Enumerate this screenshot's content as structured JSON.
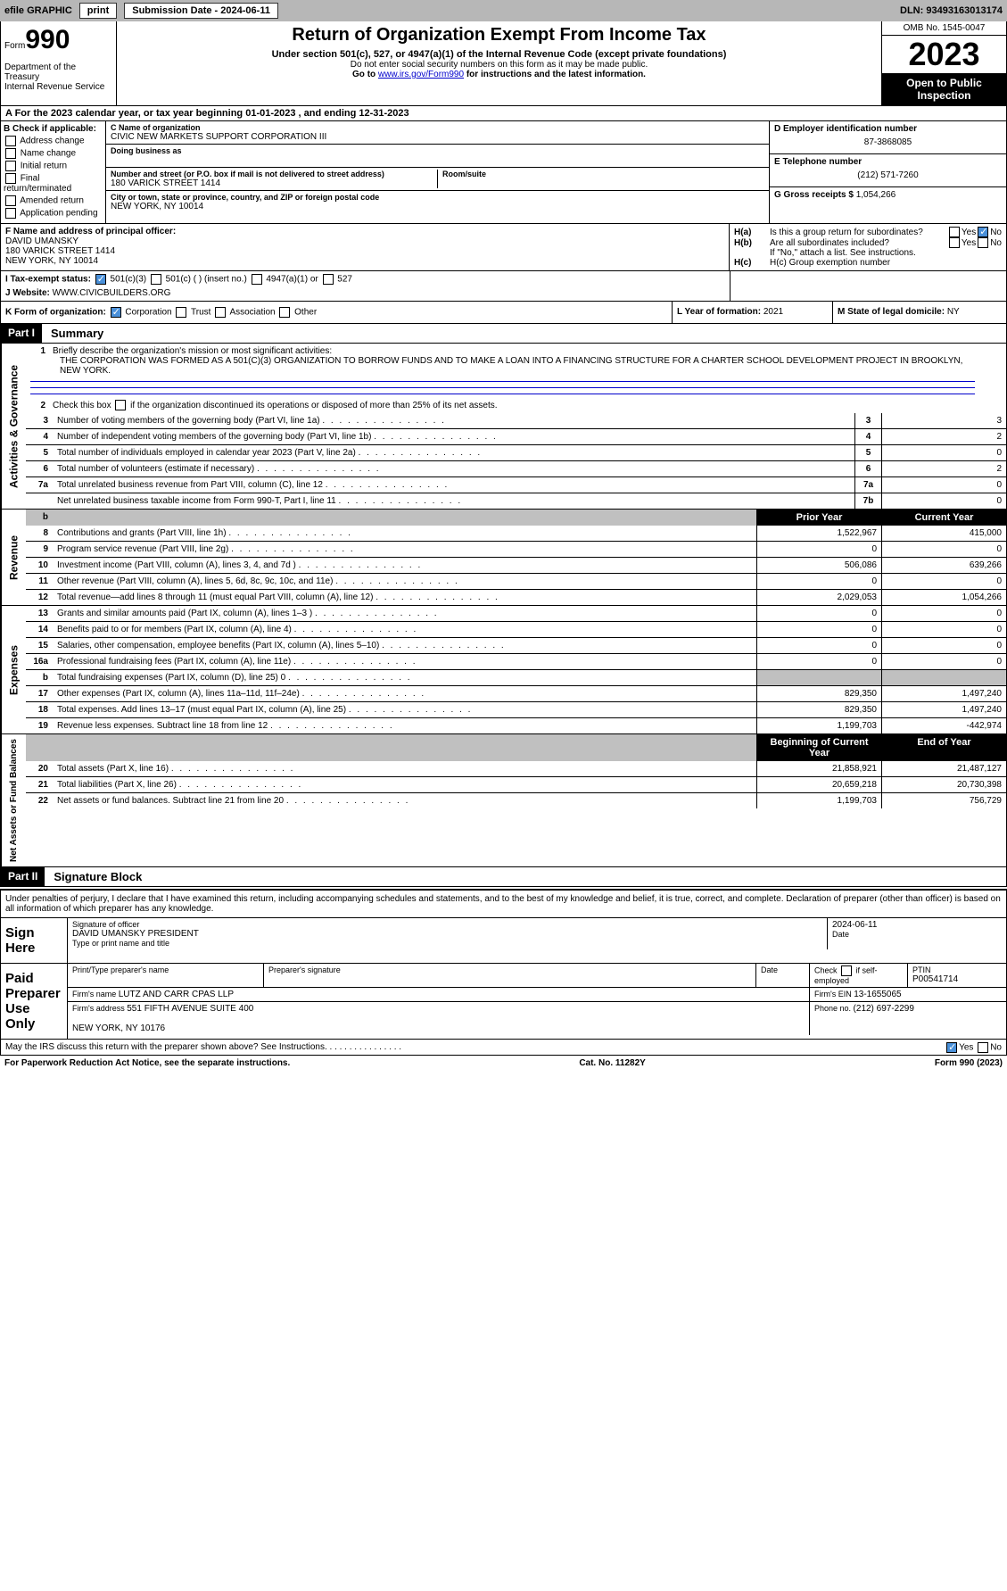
{
  "topbar": {
    "efile": "efile GRAPHIC",
    "print": "print",
    "submission_label": "Submission Date - ",
    "submission_date": "2024-06-11",
    "dln_label": "DLN: ",
    "dln": "93493163013174"
  },
  "header": {
    "form_prefix": "Form",
    "form_num": "990",
    "dept": "Department of the Treasury\nInternal Revenue Service",
    "title": "Return of Organization Exempt From Income Tax",
    "subtitle": "Under section 501(c), 527, or 4947(a)(1) of the Internal Revenue Code (except private foundations)",
    "note1": "Do not enter social security numbers on this form as it may be made public.",
    "note2_prefix": "Go to ",
    "note2_link": "www.irs.gov/Form990",
    "note2_suffix": " for instructions and the latest information.",
    "omb": "OMB No. 1545-0047",
    "year": "2023",
    "open": "Open to Public Inspection"
  },
  "period": {
    "text_a": "A  For the 2023 calendar year, or tax year beginning ",
    "begin": "01-01-2023",
    "text_b": " , and ending ",
    "end": "12-31-2023"
  },
  "colB": {
    "hdr": "B Check if applicable:",
    "opts": [
      "Address change",
      "Name change",
      "Initial return",
      "Final return/terminated",
      "Amended return",
      "Application pending"
    ]
  },
  "colC": {
    "name_label": "C Name of organization",
    "name": "CIVIC NEW MARKETS SUPPORT CORPORATION III",
    "dba_label": "Doing business as",
    "addr_label": "Number and street (or P.O. box if mail is not delivered to street address)",
    "room_label": "Room/suite",
    "addr": "180 VARICK STREET 1414",
    "city_label": "City or town, state or province, country, and ZIP or foreign postal code",
    "city": "NEW YORK, NY  10014"
  },
  "colDE": {
    "d_label": "D Employer identification number",
    "d_val": "87-3868085",
    "e_label": "E Telephone number",
    "e_val": "(212) 571-7260",
    "g_label": "G Gross receipts $ ",
    "g_val": "1,054,266"
  },
  "sectionF": {
    "f_label": "F  Name and address of principal officer:",
    "f_name": "DAVID UMANSKY",
    "f_addr": "180 VARICK STREET 1414\nNEW YORK, NY  10014",
    "ha_label": "H(a)  Is this a group return for subordinates?",
    "hb_label": "H(b)  Are all subordinates included?",
    "hb_note": "If \"No,\" attach a list. See instructions.",
    "hc_label": "H(c)  Group exemption number "
  },
  "sectionI": {
    "label": "I   Tax-exempt status:",
    "opt1": "501(c)(3)",
    "opt2": "501(c) (  ) (insert no.)",
    "opt3": "4947(a)(1) or",
    "opt4": "527"
  },
  "sectionJ": {
    "label": "J   Website: ",
    "val": "WWW.CIVICBUILDERS.ORG"
  },
  "sectionK": {
    "k_label": "K Form of organization:",
    "k_opts": [
      "Corporation",
      "Trust",
      "Association",
      "Other"
    ],
    "l_label": "L Year of formation: ",
    "l_val": "2021",
    "m_label": "M State of legal domicile: ",
    "m_val": "NY"
  },
  "part1": {
    "hdr": "Part I",
    "title": "Summary",
    "vert_labels": [
      "Activities & Governance",
      "Revenue",
      "Expenses",
      "Net Assets or Fund Balances"
    ],
    "l1_text": "Briefly describe the organization's mission or most significant activities:",
    "l1_val": "THE CORPORATION WAS FORMED AS A 501(C)(3) ORGANIZATION TO BORROW FUNDS AND TO MAKE A LOAN INTO A FINANCING STRUCTURE FOR A CHARTER SCHOOL DEVELOPMENT PROJECT IN BROOKLYN, NEW YORK.",
    "l2_text": "Check this box       if the organization discontinued its operations or disposed of more than 25% of its net assets.",
    "lines_gov": [
      {
        "num": "3",
        "text": "Number of voting members of the governing body (Part VI, line 1a)",
        "box": "3",
        "val": "3"
      },
      {
        "num": "4",
        "text": "Number of independent voting members of the governing body (Part VI, line 1b)",
        "box": "4",
        "val": "2"
      },
      {
        "num": "5",
        "text": "Total number of individuals employed in calendar year 2023 (Part V, line 2a)",
        "box": "5",
        "val": "0"
      },
      {
        "num": "6",
        "text": "Total number of volunteers (estimate if necessary)",
        "box": "6",
        "val": "2"
      },
      {
        "num": "7a",
        "text": "Total unrelated business revenue from Part VIII, column (C), line 12",
        "box": "7a",
        "val": "0"
      },
      {
        "num": "",
        "text": "Net unrelated business taxable income from Form 990-T, Part I, line 11",
        "box": "7b",
        "val": "0"
      }
    ],
    "col_prior": "Prior Year",
    "col_current": "Current Year",
    "lines_rev": [
      {
        "num": "8",
        "text": "Contributions and grants (Part VIII, line 1h)",
        "prior": "1,522,967",
        "curr": "415,000"
      },
      {
        "num": "9",
        "text": "Program service revenue (Part VIII, line 2g)",
        "prior": "0",
        "curr": "0"
      },
      {
        "num": "10",
        "text": "Investment income (Part VIII, column (A), lines 3, 4, and 7d )",
        "prior": "506,086",
        "curr": "639,266"
      },
      {
        "num": "11",
        "text": "Other revenue (Part VIII, column (A), lines 5, 6d, 8c, 9c, 10c, and 11e)",
        "prior": "0",
        "curr": "0"
      },
      {
        "num": "12",
        "text": "Total revenue—add lines 8 through 11 (must equal Part VIII, column (A), line 12)",
        "prior": "2,029,053",
        "curr": "1,054,266"
      }
    ],
    "lines_exp": [
      {
        "num": "13",
        "text": "Grants and similar amounts paid (Part IX, column (A), lines 1–3 )",
        "prior": "0",
        "curr": "0"
      },
      {
        "num": "14",
        "text": "Benefits paid to or for members (Part IX, column (A), line 4)",
        "prior": "0",
        "curr": "0"
      },
      {
        "num": "15",
        "text": "Salaries, other compensation, employee benefits (Part IX, column (A), lines 5–10)",
        "prior": "0",
        "curr": "0"
      },
      {
        "num": "16a",
        "text": "Professional fundraising fees (Part IX, column (A), line 11e)",
        "prior": "0",
        "curr": "0"
      },
      {
        "num": "b",
        "text": "Total fundraising expenses (Part IX, column (D), line 25) 0",
        "prior": "",
        "curr": "",
        "grey": true
      },
      {
        "num": "17",
        "text": "Other expenses (Part IX, column (A), lines 11a–11d, 11f–24e)",
        "prior": "829,350",
        "curr": "1,497,240"
      },
      {
        "num": "18",
        "text": "Total expenses. Add lines 13–17 (must equal Part IX, column (A), line 25)",
        "prior": "829,350",
        "curr": "1,497,240"
      },
      {
        "num": "19",
        "text": "Revenue less expenses. Subtract line 18 from line 12",
        "prior": "1,199,703",
        "curr": "-442,974"
      }
    ],
    "col_begin": "Beginning of Current Year",
    "col_end": "End of Year",
    "lines_net": [
      {
        "num": "20",
        "text": "Total assets (Part X, line 16)",
        "prior": "21,858,921",
        "curr": "21,487,127"
      },
      {
        "num": "21",
        "text": "Total liabilities (Part X, line 26)",
        "prior": "20,659,218",
        "curr": "20,730,398"
      },
      {
        "num": "22",
        "text": "Net assets or fund balances. Subtract line 21 from line 20",
        "prior": "1,199,703",
        "curr": "756,729"
      }
    ]
  },
  "part2": {
    "hdr": "Part II",
    "title": "Signature Block",
    "text": "Under penalties of perjury, I declare that I have examined this return, including accompanying schedules and statements, and to the best of my knowledge and belief, it is true, correct, and complete. Declaration of preparer (other than officer) is based on all information of which preparer has any knowledge."
  },
  "sign": {
    "left": "Sign Here",
    "sig_label": "Signature of officer",
    "name": "DAVID UMANSKY PRESIDENT",
    "name_label": "Type or print name and title",
    "date_label": "Date",
    "date": "2024-06-11"
  },
  "paid": {
    "left": "Paid Preparer Use Only",
    "prep_name_label": "Print/Type preparer's name",
    "prep_sig_label": "Preparer's signature",
    "date_label": "Date",
    "check_label": "Check        if self-employed",
    "ptin_label": "PTIN",
    "ptin": "P00541714",
    "firm_name_label": "Firm's name   ",
    "firm_name": "LUTZ AND CARR CPAS LLP",
    "firm_ein_label": "Firm's EIN  ",
    "firm_ein": "13-1655065",
    "firm_addr_label": "Firm's address ",
    "firm_addr": "551 FIFTH AVENUE SUITE 400\n\nNEW YORK, NY  10176",
    "phone_label": "Phone no. ",
    "phone": "(212) 697-2299"
  },
  "discuss": {
    "text": "May the IRS discuss this return with the preparer shown above? See Instructions.",
    "yes": "Yes",
    "no": "No"
  },
  "footer": {
    "left": "For Paperwork Reduction Act Notice, see the separate instructions.",
    "mid": "Cat. No. 11282Y",
    "right": "Form 990 (2023)"
  }
}
